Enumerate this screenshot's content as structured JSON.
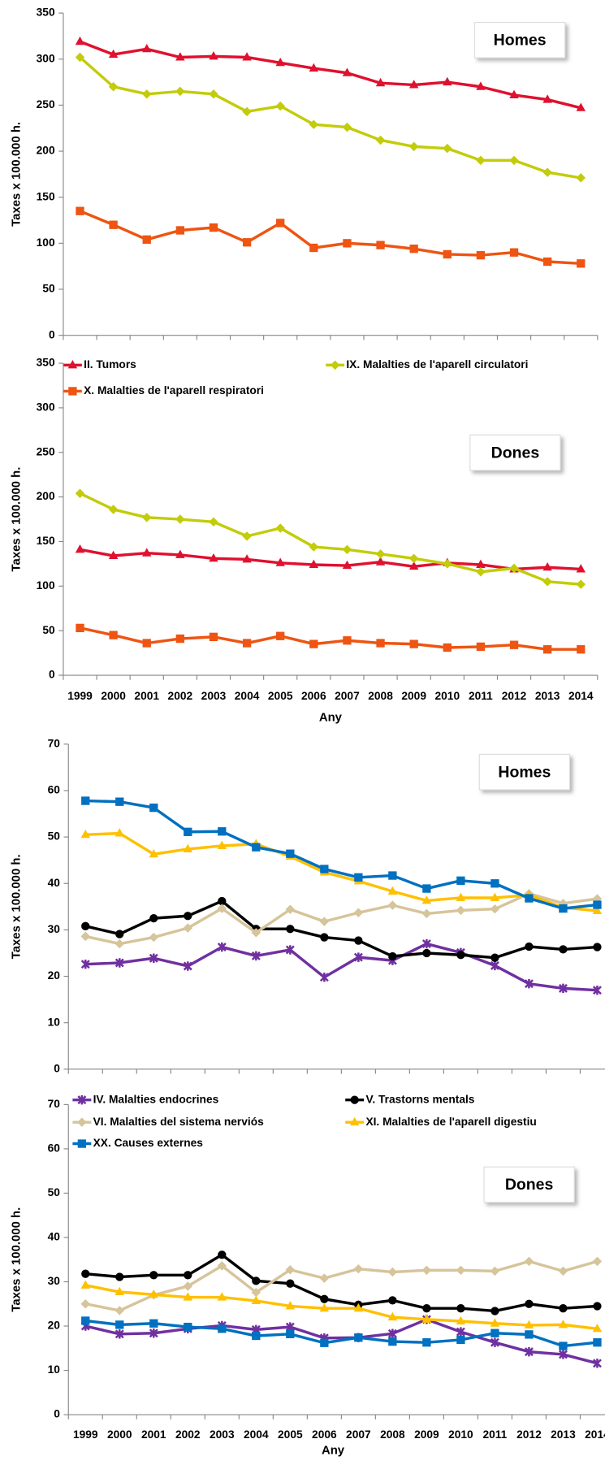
{
  "chart_data": [
    {
      "type": "line",
      "title": "Homes",
      "ylabel": "Taxes x 100.000 h.",
      "ylim": [
        0,
        350
      ],
      "yticks": [
        0,
        50,
        100,
        150,
        200,
        250,
        300,
        350
      ],
      "series": [
        {
          "name": "II. Tumors",
          "color": "#e0102f",
          "marker": "triangle",
          "values": [
            319,
            305,
            311,
            302,
            303,
            302,
            296,
            290,
            285,
            274,
            272,
            275,
            270,
            261,
            256,
            247
          ]
        },
        {
          "name": "IX. Malalties de l'aparell circulatori",
          "color": "#c2cc0a",
          "marker": "diamond",
          "values": [
            302,
            270,
            262,
            265,
            262,
            243,
            249,
            229,
            226,
            212,
            205,
            203,
            190,
            190,
            177,
            171
          ]
        },
        {
          "name": "X.  Malalties de l'aparell respiratori",
          "color": "#ee5412",
          "marker": "square",
          "values": [
            135,
            120,
            104,
            114,
            117,
            101,
            122,
            95,
            100,
            98,
            94,
            88,
            87,
            90,
            80,
            78
          ]
        }
      ]
    },
    {
      "type": "line",
      "title": "Dones",
      "ylabel": "Taxes x 100.000 h.",
      "xlabel": "Any",
      "ylim": [
        0,
        350
      ],
      "yticks": [
        0,
        50,
        100,
        150,
        200,
        250,
        300,
        350
      ],
      "categories": [
        "1999",
        "2000",
        "2001",
        "2002",
        "2003",
        "2004",
        "2005",
        "2006",
        "2007",
        "2008",
        "2009",
        "2010",
        "2011",
        "2012",
        "2013",
        "2014"
      ],
      "series": [
        {
          "color": "#e0102f",
          "marker": "triangle",
          "values": [
            141,
            134,
            137,
            135,
            131,
            130,
            126,
            124,
            123,
            127,
            122,
            126,
            124,
            119,
            121,
            119
          ]
        },
        {
          "color": "#c2cc0a",
          "marker": "diamond",
          "values": [
            204,
            186,
            177,
            175,
            172,
            156,
            165,
            144,
            141,
            136,
            131,
            125,
            116,
            120,
            105,
            102
          ]
        },
        {
          "color": "#ee5412",
          "marker": "square",
          "values": [
            53,
            45,
            36,
            41,
            43,
            36,
            44,
            35,
            39,
            36,
            35,
            31,
            32,
            34,
            29,
            29
          ]
        }
      ]
    },
    {
      "type": "line",
      "title": "Homes",
      "ylabel": "Taxes x 100.000 h.",
      "ylim": [
        0,
        70
      ],
      "yticks": [
        0,
        10,
        20,
        30,
        40,
        50,
        60,
        70
      ],
      "series": [
        {
          "name": "IV. Malalties endocrines",
          "color": "#7030a0",
          "marker": "star",
          "values": [
            22.6,
            22.9,
            23.9,
            22.2,
            26.3,
            24.4,
            25.7,
            19.8,
            24.1,
            23.4,
            27,
            25.1,
            22.3,
            18.4,
            17.4,
            17.0
          ]
        },
        {
          "name": "V. Trastorns mentals",
          "color": "#000000",
          "marker": "circle",
          "values": [
            30.8,
            29.1,
            32.5,
            33,
            36.2,
            30.2,
            30.2,
            28.4,
            27.7,
            24.3,
            25,
            24.6,
            24,
            26.4,
            25.8,
            26.3
          ]
        },
        {
          "name": "VI. Malalties del sistema nerviós",
          "color": "#d6c49a",
          "marker": "diamond",
          "values": [
            28.6,
            27,
            28.4,
            30.4,
            34.6,
            29.4,
            34.4,
            31.8,
            33.7,
            35.3,
            33.5,
            34.2,
            34.5,
            37.8,
            35.7,
            36.7
          ]
        },
        {
          "name": "XI. Malalties de l'aparell digestiu",
          "color": "#ffc000",
          "marker": "triangle",
          "values": [
            50.5,
            50.8,
            46.3,
            47.4,
            48.1,
            48.5,
            45.8,
            42.4,
            40.5,
            38.3,
            36.3,
            36.9,
            36.9,
            37.5,
            34.8,
            34.1
          ]
        },
        {
          "name": "XX. Causes externes",
          "color": "#0070c0",
          "marker": "square",
          "values": [
            57.8,
            57.6,
            56.3,
            51.1,
            51.2,
            47.8,
            46.4,
            43.1,
            41.3,
            41.7,
            38.9,
            40.6,
            40,
            36.8,
            34.6,
            35.4
          ]
        }
      ]
    },
    {
      "type": "line",
      "title": "Dones",
      "ylabel": "Taxes x 100.000 h.",
      "xlabel": "Any",
      "ylim": [
        0,
        70
      ],
      "yticks": [
        0,
        10,
        20,
        30,
        40,
        50,
        60,
        70
      ],
      "categories": [
        "1999",
        "2000",
        "2001",
        "2002",
        "2003",
        "2004",
        "2005",
        "2006",
        "2007",
        "2008",
        "2009",
        "2010",
        "2011",
        "2012",
        "2013",
        "2014"
      ],
      "series": [
        {
          "color": "#7030a0",
          "marker": "star",
          "values": [
            20,
            18.2,
            18.4,
            19.4,
            20.1,
            19.2,
            19.8,
            17.3,
            17.4,
            18.3,
            21.5,
            18.7,
            16.3,
            14.2,
            13.6,
            11.6
          ]
        },
        {
          "color": "#000000",
          "marker": "circle",
          "values": [
            31.8,
            31.1,
            31.5,
            31.5,
            36.1,
            30.2,
            29.6,
            26.1,
            24.8,
            25.8,
            24,
            24,
            23.4,
            25,
            24,
            24.5
          ]
        },
        {
          "color": "#d6c49a",
          "marker": "diamond",
          "values": [
            25,
            23.5,
            27,
            29,
            33.6,
            27.6,
            32.7,
            30.8,
            32.9,
            32.2,
            32.6,
            32.6,
            32.4,
            34.6,
            32.4,
            34.6
          ]
        },
        {
          "color": "#ffc000",
          "marker": "triangle",
          "values": [
            29.2,
            27.7,
            27.1,
            26.5,
            26.5,
            25.7,
            24.5,
            24,
            24,
            22,
            21.5,
            21.1,
            20.6,
            20.2,
            20.3,
            19.4
          ]
        },
        {
          "color": "#0070c0",
          "marker": "square",
          "values": [
            21.2,
            20.3,
            20.6,
            19.8,
            19.4,
            17.8,
            18.2,
            16.2,
            17.4,
            16.5,
            16.3,
            16.9,
            18.4,
            18.1,
            15.5,
            16.3
          ]
        }
      ]
    }
  ]
}
